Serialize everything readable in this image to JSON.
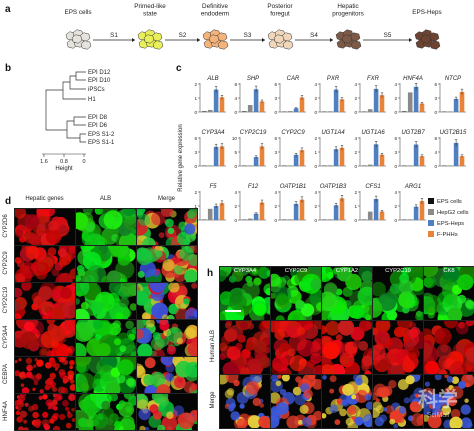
{
  "panel_letters": {
    "a": "a",
    "b": "b",
    "c": "c",
    "d": "d",
    "h": "h"
  },
  "panel_a": {
    "stages": [
      "EPS cells",
      "Primed-like\nstate",
      "Definitive\nendoderm",
      "Posterior\nforegut",
      "Hepatic\nprogenitors",
      "EPS-Heps"
    ],
    "steps": [
      "S1",
      "S2",
      "S3",
      "S4",
      "S5"
    ],
    "colors": [
      "#e6e3dc",
      "#e9ef58",
      "#f3b37a",
      "#f0d7b9",
      "#7c5a47",
      "#6b4330"
    ]
  },
  "panel_b": {
    "leaves": [
      "EPI D12",
      "EPI D10",
      "iPSCs",
      "H1",
      "EPI D8",
      "EPI D6",
      "EPS S1-2",
      "EPS S1-1"
    ],
    "axis_label": "Height",
    "ticks": [
      "1.6",
      "0.8",
      "0"
    ]
  },
  "panel_c": {
    "ylabel": "Relative gene expression",
    "legend": [
      {
        "name": "EPS cells",
        "color": "#111111"
      },
      {
        "name": "HepG2 cells",
        "color": "#8a8a8a"
      },
      {
        "name": "EPS-Heps",
        "color": "#4f7fbf"
      },
      {
        "name": "F-PHHs",
        "color": "#e8833a"
      }
    ]
  },
  "chart_data": {
    "type": "bar",
    "series_names": [
      "EPS cells",
      "HepG2 cells",
      "EPS-Heps",
      "F-PHHs"
    ],
    "colors": [
      "#111111",
      "#8a8a8a",
      "#4f7fbf",
      "#e8833a"
    ],
    "ylabel": "Relative gene expression",
    "rows": [
      [
        {
          "gene": "ALB",
          "ticks": [
            "0",
            "1",
            "2"
          ],
          "ymax": 2,
          "values": [
            0.02,
            0.15,
            1.6,
            1.05
          ]
        },
        {
          "gene": "SHP",
          "ticks": [
            "0",
            "4",
            "8"
          ],
          "ymax": 8,
          "values": [
            0.05,
            2.0,
            6.5,
            3.0
          ]
        },
        {
          "gene": "CAR",
          "ticks": [
            "0",
            "3",
            "6"
          ],
          "ymax": 6,
          "values": [
            0.0,
            0.2,
            0.8,
            3.1
          ]
        },
        {
          "gene": "PXR",
          "ticks": [
            "0",
            "2",
            "4"
          ],
          "ymax": 4,
          "values": [
            0.0,
            0.1,
            3.2,
            1.8
          ]
        },
        {
          "gene": "FXR",
          "ticks": [
            "0",
            "2",
            "4"
          ],
          "ymax": 4,
          "values": [
            0.0,
            0.4,
            3.3,
            2.4
          ]
        },
        {
          "gene": "HNF4A",
          "ticks": [
            "0",
            "2",
            "4"
          ],
          "ymax": 4,
          "values": [
            0.05,
            2.8,
            3.6,
            1.2
          ]
        },
        {
          "gene": "NTCP",
          "ticks": [
            "0",
            "3",
            "6"
          ],
          "ymax": 6,
          "values": [
            0.0,
            0.1,
            2.8,
            4.3
          ]
        }
      ],
      [
        {
          "gene": "CYP3A4",
          "ticks": [
            "0",
            "3",
            "6"
          ],
          "ymax": 6,
          "values": [
            0.0,
            0.05,
            4.1,
            4.2
          ]
        },
        {
          "gene": "CYP2C19",
          "ticks": [
            "0",
            "5",
            "10"
          ],
          "ymax": 10,
          "values": [
            0.0,
            0.1,
            3.2,
            7.0
          ]
        },
        {
          "gene": "CYP2C9",
          "ticks": [
            "0",
            "3",
            "6"
          ],
          "ymax": 6,
          "values": [
            0.0,
            0.1,
            2.4,
            3.4
          ]
        },
        {
          "gene": "UGT1A4",
          "ticks": [
            "0",
            "1",
            "2"
          ],
          "ymax": 2,
          "values": [
            0.0,
            0.05,
            1.2,
            1.3
          ]
        },
        {
          "gene": "UGT1A6",
          "ticks": [
            "0",
            "2",
            "4"
          ],
          "ymax": 4,
          "values": [
            0.0,
            0.2,
            3.1,
            1.6
          ]
        },
        {
          "gene": "UGT2B7",
          "ticks": [
            "0",
            "3",
            "6"
          ],
          "ymax": 6,
          "values": [
            0.0,
            0.05,
            4.6,
            2.1
          ]
        },
        {
          "gene": "UGT2B15",
          "ticks": [
            "0",
            "4",
            "8"
          ],
          "ymax": 8,
          "values": [
            0.0,
            0.05,
            6.6,
            2.8
          ]
        }
      ],
      [
        {
          "gene": "F5",
          "ticks": [
            "0",
            "1",
            "2"
          ],
          "ymax": 2,
          "values": [
            0.0,
            0.8,
            1.0,
            1.2
          ]
        },
        {
          "gene": "F12",
          "ticks": [
            "0",
            "2",
            "4"
          ],
          "ymax": 4,
          "values": [
            0.0,
            0.2,
            0.9,
            2.5
          ]
        },
        {
          "gene": "OATP1B1",
          "ticks": [
            "0",
            "2",
            "4"
          ],
          "ymax": 4,
          "values": [
            0.0,
            0.1,
            2.3,
            2.9
          ]
        },
        {
          "gene": "OATP1B3",
          "ticks": [
            "0",
            "2",
            "4"
          ],
          "ymax": 4,
          "values": [
            0.0,
            0.1,
            2.1,
            3.1
          ]
        },
        {
          "gene": "CFS1",
          "ticks": [
            "0",
            "1",
            "2"
          ],
          "ymax": 2,
          "values": [
            0.0,
            0.6,
            1.5,
            0.6
          ]
        },
        {
          "gene": "ARG1",
          "ticks": [
            "0",
            "2",
            "4"
          ],
          "ymax": 4,
          "values": [
            0.0,
            0.1,
            1.9,
            2.7
          ]
        }
      ]
    ]
  },
  "panel_d": {
    "col_headers": [
      "Hepatic genes",
      "ALB",
      "Merge"
    ],
    "rows": [
      "CYP2D6",
      "CYP2C9",
      "CYP2C19",
      "CYP3A4",
      "CEBPA",
      "HNF4A"
    ]
  },
  "panel_h": {
    "col_headers": [
      "CYP3A4",
      "CYP2C9",
      "CYP1A2",
      "CYP2C19",
      "CK8"
    ],
    "rows": [
      "",
      "Human ALB",
      "Merge"
    ]
  },
  "watermark": {
    "main": "科学",
    "sub": "SciMall"
  }
}
